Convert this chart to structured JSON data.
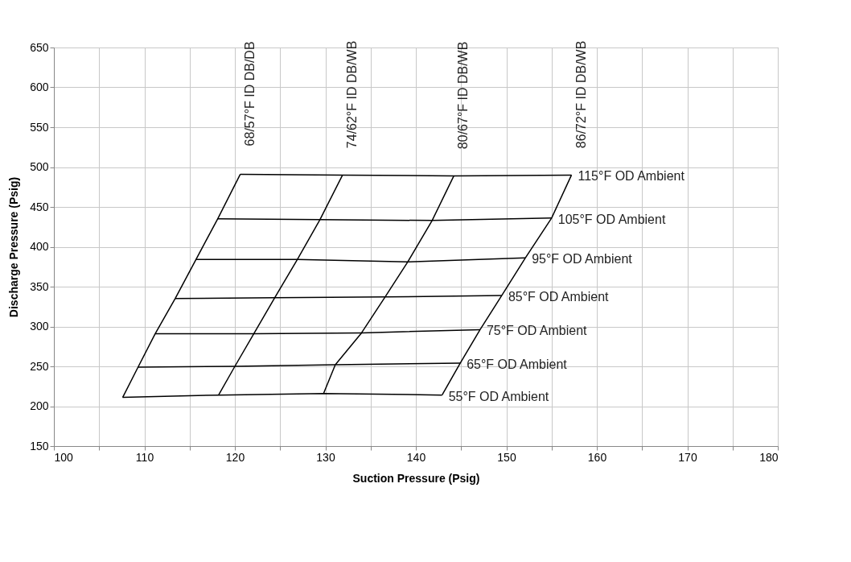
{
  "chart_data": {
    "type": "line",
    "xlabel": "Suction Pressure (Psig)",
    "ylabel": "Discharge Pressure (Psig)",
    "xlim": [
      100,
      180
    ],
    "xticks": [
      100,
      {
        "value": 105,
        "label": null
      },
      110,
      {
        "value": 115,
        "label": null
      },
      120,
      {
        "value": 125,
        "label": null
      },
      130,
      {
        "value": 135,
        "label": null
      },
      140,
      {
        "value": 145,
        "label": null
      },
      150,
      {
        "value": 155,
        "label": null
      },
      160,
      {
        "value": 165,
        "label": null
      },
      170,
      {
        "value": 175,
        "label": null
      },
      180
    ],
    "ylim": [
      150,
      650
    ],
    "yticks": [
      150,
      200,
      250,
      300,
      350,
      400,
      450,
      500,
      550,
      600,
      650
    ],
    "grid": true,
    "legend": false,
    "marker": "none",
    "line_style": "solid",
    "series": [
      {
        "name": "55°F OD Ambient",
        "color": "#000000",
        "x": [
          107.6,
          118.2,
          129.8,
          142.9
        ],
        "values": [
          211,
          214,
          216,
          214
        ]
      },
      {
        "name": "65°F OD Ambient",
        "color": "#000000",
        "x": [
          109.3,
          120.0,
          131.1,
          144.9
        ],
        "values": [
          249,
          250,
          252,
          254
        ]
      },
      {
        "name": "75°F OD Ambient",
        "color": "#000000",
        "x": [
          111.2,
          122.1,
          134.0,
          147.1
        ],
        "values": [
          291,
          291,
          292,
          296
        ]
      },
      {
        "name": "85°F OD Ambient",
        "color": "#000000",
        "x": [
          113.4,
          124.4,
          136.6,
          149.5
        ],
        "values": [
          335,
          336,
          337,
          339
        ]
      },
      {
        "name": "95°F OD Ambient",
        "color": "#000000",
        "x": [
          115.7,
          126.9,
          139.1,
          152.1
        ],
        "values": [
          384,
          384,
          381,
          386
        ]
      },
      {
        "name": "105°F OD Ambient",
        "color": "#000000",
        "x": [
          118.1,
          129.4,
          141.8,
          155.0
        ],
        "values": [
          435,
          434,
          433,
          436
        ]
      },
      {
        "name": "115°F OD Ambient",
        "color": "#000000",
        "x": [
          120.6,
          131.9,
          144.2,
          157.2
        ],
        "values": [
          491,
          490,
          489,
          490
        ]
      },
      {
        "name": "68/57°F ID DB/DB",
        "color": "#000000",
        "x": [
          107.6,
          109.3,
          111.2,
          113.4,
          115.7,
          118.1,
          120.6
        ],
        "values": [
          211,
          249,
          291,
          335,
          384,
          435,
          491
        ]
      },
      {
        "name": "74/62°F ID DB/WB",
        "color": "#000000",
        "x": [
          118.2,
          120.0,
          122.1,
          124.4,
          126.9,
          129.4,
          131.9
        ],
        "values": [
          214,
          250,
          291,
          336,
          384,
          434,
          490
        ]
      },
      {
        "name": "80/67°F ID DB/WB",
        "color": "#000000",
        "x": [
          129.8,
          131.1,
          134.0,
          136.6,
          139.1,
          141.8,
          144.2
        ],
        "values": [
          216,
          252,
          292,
          337,
          381,
          433,
          489
        ]
      },
      {
        "name": "86/72°F ID DB/WB",
        "color": "#000000",
        "x": [
          142.9,
          144.9,
          147.1,
          149.5,
          152.1,
          155.0,
          157.2
        ],
        "values": [
          214,
          254,
          296,
          339,
          386,
          436,
          490
        ]
      }
    ]
  }
}
